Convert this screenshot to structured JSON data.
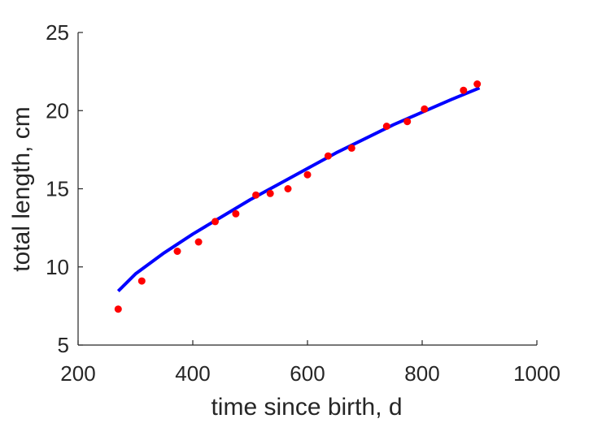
{
  "chart_data": {
    "type": "scatter",
    "title": "",
    "xlabel": "time since birth, d",
    "ylabel": "total length, cm",
    "xlim": [
      200,
      1000
    ],
    "ylim": [
      5,
      25
    ],
    "xticks": [
      200,
      400,
      600,
      800,
      1000
    ],
    "yticks": [
      5,
      10,
      15,
      20,
      25
    ],
    "grid": false,
    "legend": "none",
    "series": [
      {
        "type": "scatter",
        "color": "#ff0000",
        "x": [
          270,
          311,
          373,
          410,
          439,
          475,
          510,
          535,
          566,
          600,
          636,
          677,
          738,
          774,
          804,
          872,
          896
        ],
        "y": [
          7.3,
          9.1,
          11.0,
          11.6,
          12.9,
          13.4,
          14.6,
          14.7,
          15.0,
          15.9,
          17.1,
          17.6,
          19.0,
          19.3,
          20.1,
          21.3,
          21.7
        ]
      },
      {
        "type": "line",
        "color": "#0000ff",
        "x": [
          270,
          300,
          350,
          400,
          450,
          500,
          550,
          600,
          650,
          700,
          750,
          800,
          850,
          900
        ],
        "y": [
          8.45,
          9.55,
          10.9,
          12.1,
          13.2,
          14.3,
          15.3,
          16.3,
          17.3,
          18.2,
          19.1,
          19.9,
          20.7,
          21.45
        ]
      }
    ]
  }
}
